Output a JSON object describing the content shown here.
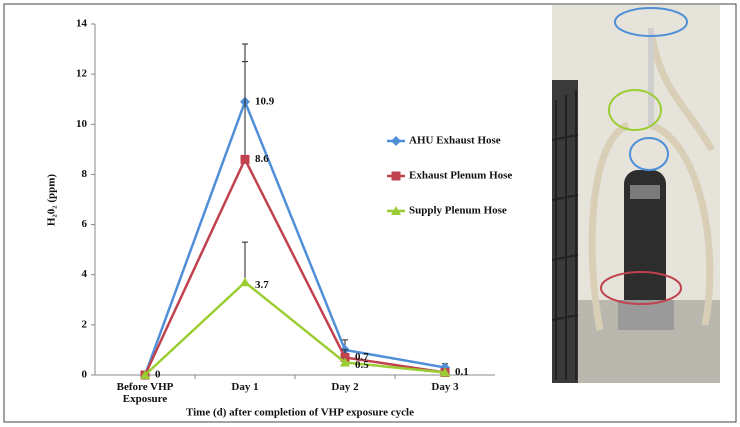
{
  "chart_data": {
    "type": "line",
    "y_label": "H₂0₂ (ppm)",
    "x_label": "Time (d) after completion of VHP exposure cycle",
    "categories": [
      "Before VHP Exposure",
      "Day 1",
      "Day 2",
      "Day 3"
    ],
    "ylim": [
      0,
      14
    ],
    "yticks": [
      0,
      2,
      4,
      6,
      8,
      10,
      12,
      14
    ],
    "legend": "right",
    "series": [
      {
        "name": "AHU Exhaust Hose",
        "color": "#4f8fd8",
        "marker": "diamond",
        "values": [
          0,
          10.9,
          1.0,
          0.3
        ],
        "errors": [
          null,
          2.3,
          0.4,
          0.15
        ],
        "show_labels": [
          1
        ]
      },
      {
        "name": "Exhaust Plenum Hose",
        "color": "#c0424f",
        "marker": "square",
        "values": [
          0,
          8.6,
          0.7,
          0.1
        ],
        "errors": [
          null,
          3.9,
          0.3,
          0.1
        ],
        "show_labels": [
          1,
          2
        ]
      },
      {
        "name": "Supply Plenum Hose",
        "color": "#9acd32",
        "marker": "triangle",
        "values": [
          0,
          3.7,
          0.5,
          0.1
        ],
        "errors": [
          null,
          1.6,
          null,
          null
        ],
        "show_labels": [
          0,
          1,
          2,
          3
        ]
      }
    ]
  }
}
